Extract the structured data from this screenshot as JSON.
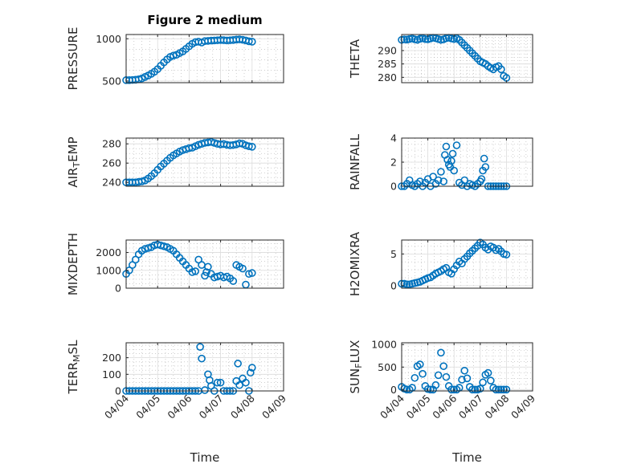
{
  "figure_title": "Figure 2 medium",
  "colors": {
    "marker": "#0072BD",
    "axes": "#262626",
    "grid": "#dcdcdc"
  },
  "chart_data": [
    {
      "type": "scatter",
      "ylabel": "PRESSURE",
      "title": "Figure 2 medium",
      "xlabel": "",
      "xlim": [
        0,
        5
      ],
      "ylim": [
        480,
        1050
      ],
      "yticks": [
        500,
        1000
      ],
      "ytick_labels": [
        "500",
        "1000"
      ],
      "xticks": [
        0,
        1,
        2,
        3,
        4,
        5
      ],
      "xtick_labels": [],
      "x": [
        0.0,
        0.1,
        0.2,
        0.3,
        0.4,
        0.5,
        0.6,
        0.7,
        0.8,
        0.9,
        1.0,
        1.1,
        1.2,
        1.3,
        1.4,
        1.5,
        1.6,
        1.7,
        1.8,
        1.9,
        2.0,
        2.1,
        2.2,
        2.3,
        2.4,
        2.5,
        2.6,
        2.7,
        2.8,
        2.9,
        3.0,
        3.1,
        3.2,
        3.3,
        3.4,
        3.5,
        3.6,
        3.7,
        3.8,
        3.9,
        4.0
      ],
      "y": [
        510,
        510,
        512,
        515,
        520,
        530,
        548,
        565,
        585,
        610,
        640,
        680,
        720,
        755,
        785,
        800,
        810,
        830,
        850,
        880,
        910,
        940,
        960,
        965,
        955,
        972,
        975,
        978,
        980,
        982,
        985,
        983,
        980,
        982,
        985,
        990,
        992,
        988,
        980,
        970,
        965
      ]
    },
    {
      "type": "scatter",
      "ylabel": "THETA",
      "title": "",
      "xlabel": "",
      "xlim": [
        0,
        5
      ],
      "ylim": [
        278,
        296
      ],
      "yticks": [
        280,
        285,
        290
      ],
      "ytick_labels": [
        "280",
        "285",
        "290"
      ],
      "xticks": [
        0,
        1,
        2,
        3,
        4,
        5
      ],
      "xtick_labels": [],
      "x": [
        0.0,
        0.1,
        0.2,
        0.3,
        0.4,
        0.5,
        0.6,
        0.7,
        0.8,
        0.9,
        1.0,
        1.1,
        1.2,
        1.3,
        1.4,
        1.5,
        1.6,
        1.7,
        1.8,
        1.9,
        2.0,
        2.1,
        2.2,
        2.3,
        2.4,
        2.5,
        2.6,
        2.7,
        2.8,
        2.9,
        3.0,
        3.1,
        3.2,
        3.3,
        3.4,
        3.5,
        3.6,
        3.7,
        3.8,
        3.9,
        4.0
      ],
      "y": [
        294.0,
        294.2,
        294.1,
        294.3,
        294.5,
        294.2,
        294.0,
        294.4,
        294.6,
        294.3,
        294.2,
        294.5,
        294.8,
        294.6,
        294.3,
        294.0,
        294.2,
        294.6,
        294.8,
        294.5,
        294.3,
        294.6,
        294.0,
        293.0,
        292.0,
        291.0,
        290.0,
        289.0,
        288.0,
        287.0,
        286.0,
        285.5,
        285.0,
        284.2,
        283.5,
        283.0,
        283.8,
        284.2,
        283.0,
        280.5,
        279.8
      ]
    },
    {
      "type": "scatter",
      "ylabel": "AIR_TEMP",
      "title": "",
      "xlabel": "",
      "xlim": [
        0,
        5
      ],
      "ylim": [
        236,
        286
      ],
      "yticks": [
        240,
        260,
        280
      ],
      "ytick_labels": [
        "240",
        "260",
        "280"
      ],
      "xticks": [
        0,
        1,
        2,
        3,
        4,
        5
      ],
      "xtick_labels": [],
      "x": [
        0.0,
        0.1,
        0.2,
        0.3,
        0.4,
        0.5,
        0.6,
        0.7,
        0.8,
        0.9,
        1.0,
        1.1,
        1.2,
        1.3,
        1.4,
        1.5,
        1.6,
        1.7,
        1.8,
        1.9,
        2.0,
        2.1,
        2.2,
        2.3,
        2.4,
        2.5,
        2.6,
        2.7,
        2.8,
        2.9,
        3.0,
        3.1,
        3.2,
        3.3,
        3.4,
        3.5,
        3.6,
        3.7,
        3.8,
        3.9,
        4.0
      ],
      "y": [
        240,
        240,
        240,
        240,
        240.5,
        241,
        242,
        244,
        246.5,
        249.5,
        253,
        256.5,
        259.5,
        262.5,
        265.5,
        268,
        270,
        272,
        273.5,
        274.5,
        275.5,
        276,
        277.5,
        279,
        280,
        281,
        281.5,
        282,
        281,
        280,
        279.5,
        279.8,
        279,
        278.5,
        278.8,
        279.5,
        280.5,
        280,
        278.5,
        277.5,
        277
      ]
    },
    {
      "type": "scatter",
      "ylabel": "RAINFALL",
      "title": "",
      "xlabel": "",
      "xlim": [
        0,
        5
      ],
      "ylim": [
        0,
        4
      ],
      "yticks": [
        0,
        2,
        4
      ],
      "ytick_labels": [
        "0",
        "2",
        "4"
      ],
      "xticks": [
        0,
        1,
        2,
        3,
        4,
        5
      ],
      "xtick_labels": [],
      "x": [
        0.0,
        0.1,
        0.2,
        0.3,
        0.4,
        0.5,
        0.6,
        0.7,
        0.8,
        0.9,
        1.0,
        1.1,
        1.2,
        1.3,
        1.4,
        1.5,
        1.6,
        1.65,
        1.7,
        1.75,
        1.8,
        1.85,
        1.9,
        1.95,
        2.0,
        2.1,
        2.2,
        2.3,
        2.4,
        2.5,
        2.6,
        2.7,
        2.8,
        2.9,
        3.0,
        3.05,
        3.1,
        3.15,
        3.2,
        3.3,
        3.4,
        3.5,
        3.6,
        3.7,
        3.8,
        3.9,
        4.0
      ],
      "y": [
        0,
        0,
        0.2,
        0.5,
        0.1,
        0,
        0.2,
        0.4,
        0,
        0.3,
        0.6,
        0,
        0.8,
        0.2,
        0.5,
        1.2,
        0.4,
        2.6,
        3.3,
        2.2,
        1.8,
        1.6,
        2.1,
        2.7,
        1.3,
        3.4,
        0.3,
        0.1,
        0.5,
        0,
        0.2,
        0.1,
        0,
        0.2,
        0.4,
        0.6,
        1.3,
        2.3,
        1.6,
        0,
        0,
        0,
        0,
        0,
        0,
        0,
        0
      ]
    },
    {
      "type": "scatter",
      "ylabel": "MIXDEPTH",
      "title": "",
      "xlabel": "",
      "xlim": [
        0,
        5
      ],
      "ylim": [
        0,
        2700
      ],
      "yticks": [
        0,
        1000,
        2000
      ],
      "ytick_labels": [
        "0",
        "1000",
        "2000"
      ],
      "xticks": [
        0,
        1,
        2,
        3,
        4,
        5
      ],
      "xtick_labels": [],
      "x": [
        0.0,
        0.1,
        0.2,
        0.3,
        0.4,
        0.5,
        0.6,
        0.7,
        0.8,
        0.9,
        1.0,
        1.1,
        1.2,
        1.3,
        1.4,
        1.5,
        1.6,
        1.7,
        1.8,
        1.9,
        2.0,
        2.1,
        2.2,
        2.3,
        2.4,
        2.5,
        2.55,
        2.6,
        2.7,
        2.8,
        2.9,
        3.0,
        3.1,
        3.2,
        3.3,
        3.4,
        3.5,
        3.6,
        3.7,
        3.8,
        3.9,
        4.0
      ],
      "y": [
        800,
        1000,
        1300,
        1600,
        1900,
        2100,
        2200,
        2250,
        2300,
        2400,
        2450,
        2400,
        2350,
        2300,
        2200,
        2100,
        1900,
        1700,
        1500,
        1300,
        1100,
        900,
        950,
        1600,
        1300,
        700,
        900,
        1200,
        800,
        600,
        650,
        700,
        600,
        650,
        550,
        400,
        1300,
        1200,
        1100,
        200,
        800,
        850
      ]
    },
    {
      "type": "scatter",
      "ylabel": "H2OMIXRA",
      "title": "",
      "xlabel": "",
      "xlim": [
        0,
        5
      ],
      "ylim": [
        -0.4,
        7.2
      ],
      "yticks": [
        0,
        5
      ],
      "ytick_labels": [
        "0",
        "5"
      ],
      "xticks": [
        0,
        1,
        2,
        3,
        4,
        5
      ],
      "xtick_labels": [],
      "x": [
        0.0,
        0.1,
        0.2,
        0.3,
        0.4,
        0.5,
        0.6,
        0.7,
        0.8,
        0.9,
        1.0,
        1.1,
        1.2,
        1.3,
        1.4,
        1.5,
        1.6,
        1.7,
        1.8,
        1.9,
        2.0,
        2.1,
        2.2,
        2.3,
        2.4,
        2.5,
        2.6,
        2.7,
        2.8,
        2.9,
        3.0,
        3.1,
        3.2,
        3.3,
        3.4,
        3.5,
        3.6,
        3.7,
        3.8,
        3.9,
        4.0
      ],
      "y": [
        0.3,
        0.3,
        0.2,
        0.2,
        0.3,
        0.4,
        0.5,
        0.6,
        0.8,
        1.0,
        1.2,
        1.3,
        1.6,
        1.9,
        2.1,
        2.3,
        2.6,
        2.8,
        2.1,
        1.9,
        2.6,
        3.2,
        3.8,
        3.5,
        4.2,
        4.6,
        5.1,
        5.5,
        5.9,
        6.3,
        6.8,
        6.5,
        6.0,
        5.7,
        6.2,
        6.0,
        5.6,
        5.8,
        5.4,
        5.0,
        4.9
      ]
    },
    {
      "type": "scatter",
      "ylabel": "TERR_MSL",
      "title": "",
      "xlabel": "Time",
      "xlim": [
        0,
        5
      ],
      "ylim": [
        0,
        290
      ],
      "yticks": [
        0,
        100,
        200
      ],
      "ytick_labels": [
        "0",
        "100",
        "200"
      ],
      "xticks": [
        0,
        1,
        2,
        3,
        4,
        5
      ],
      "xtick_labels": [
        "04/04",
        "04/05",
        "04/06",
        "04/07",
        "04/08",
        "04/09"
      ],
      "x": [
        0.0,
        0.1,
        0.2,
        0.3,
        0.4,
        0.5,
        0.6,
        0.7,
        0.8,
        0.9,
        1.0,
        1.1,
        1.2,
        1.3,
        1.4,
        1.5,
        1.6,
        1.7,
        1.8,
        1.9,
        2.0,
        2.1,
        2.2,
        2.3,
        2.35,
        2.4,
        2.5,
        2.6,
        2.65,
        2.7,
        2.8,
        2.9,
        3.0,
        3.1,
        3.2,
        3.3,
        3.4,
        3.5,
        3.55,
        3.6,
        3.7,
        3.8,
        3.9,
        3.95,
        4.0
      ],
      "y": [
        0,
        0,
        0,
        0,
        0,
        0,
        0,
        0,
        0,
        0,
        0,
        0,
        0,
        0,
        0,
        0,
        0,
        0,
        0,
        0,
        0,
        0,
        0,
        0,
        265,
        195,
        5,
        100,
        65,
        30,
        0,
        50,
        50,
        0,
        0,
        0,
        0,
        60,
        165,
        35,
        75,
        50,
        0,
        110,
        140
      ]
    },
    {
      "type": "scatter",
      "ylabel": "SUN_FLUX",
      "title": "",
      "xlabel": "Time",
      "xlim": [
        0,
        5
      ],
      "ylim": [
        -30,
        1040
      ],
      "yticks": [
        0,
        500,
        1000
      ],
      "ytick_labels": [
        "0",
        "500",
        "1000"
      ],
      "xticks": [
        0,
        1,
        2,
        3,
        4,
        5
      ],
      "xtick_labels": [
        "04/04",
        "04/05",
        "04/06",
        "04/07",
        "04/08",
        "04/09"
      ],
      "x": [
        0.0,
        0.1,
        0.2,
        0.3,
        0.4,
        0.5,
        0.6,
        0.7,
        0.8,
        0.9,
        1.0,
        1.1,
        1.2,
        1.3,
        1.4,
        1.5,
        1.6,
        1.7,
        1.8,
        1.9,
        2.0,
        2.1,
        2.2,
        2.3,
        2.4,
        2.5,
        2.6,
        2.7,
        2.8,
        2.9,
        3.0,
        3.1,
        3.2,
        3.3,
        3.4,
        3.5,
        3.6,
        3.7,
        3.8,
        3.9,
        4.0
      ],
      "y": [
        60,
        20,
        0,
        0,
        40,
        260,
        520,
        560,
        350,
        80,
        10,
        0,
        0,
        100,
        320,
        820,
        520,
        280,
        80,
        0,
        0,
        0,
        40,
        220,
        420,
        250,
        60,
        0,
        0,
        0,
        20,
        160,
        330,
        370,
        200,
        40,
        0,
        0,
        0,
        0,
        0
      ]
    }
  ]
}
